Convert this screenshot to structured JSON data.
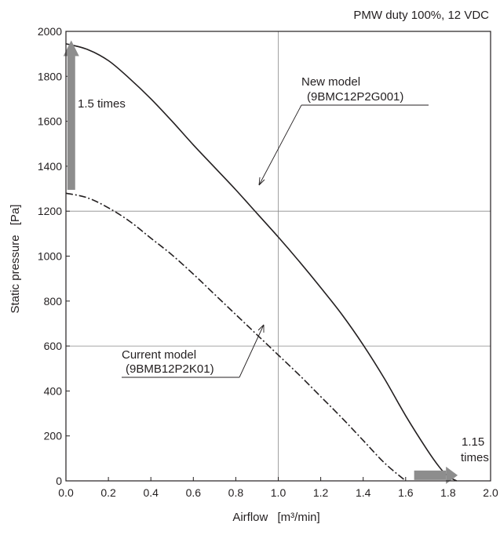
{
  "chart_data": {
    "type": "line",
    "title": "PMW duty 100%, 12 VDC",
    "xlabel": "Airflow",
    "xunit": "[m³/min]",
    "ylabel": "Static pressure",
    "yunit": "[Pa]",
    "xlim": [
      0.0,
      2.0
    ],
    "ylim": [
      0,
      2000
    ],
    "xticks": [
      "0.0",
      "0.2",
      "0.4",
      "0.6",
      "0.8",
      "1.0",
      "1.2",
      "1.4",
      "1.6",
      "1.8",
      "2.0"
    ],
    "yticks": [
      "0",
      "200",
      "400",
      "600",
      "800",
      "1000",
      "1200",
      "1400",
      "1600",
      "1800",
      "2000"
    ],
    "grid": true,
    "series": [
      {
        "name": "New model",
        "name2": "(9BMC12P2G001)",
        "style": "solid",
        "color": "#231f20",
        "x": [
          0.0,
          0.1,
          0.2,
          0.3,
          0.4,
          0.5,
          0.6,
          0.7,
          0.8,
          0.9,
          1.0,
          1.1,
          1.2,
          1.3,
          1.4,
          1.5,
          1.6,
          1.7,
          1.76,
          1.8,
          1.84
        ],
        "y": [
          1945,
          1920,
          1870,
          1790,
          1700,
          1600,
          1495,
          1395,
          1295,
          1190,
          1085,
          975,
          860,
          740,
          605,
          455,
          290,
          140,
          60,
          20,
          0
        ]
      },
      {
        "name": "Current model",
        "name2": "(9BMB12P2K01)",
        "style": "dashdot",
        "color": "#231f20",
        "x": [
          0.0,
          0.1,
          0.2,
          0.3,
          0.4,
          0.5,
          0.6,
          0.7,
          0.8,
          0.9,
          1.0,
          1.1,
          1.2,
          1.3,
          1.4,
          1.5,
          1.6
        ],
        "y": [
          1280,
          1260,
          1215,
          1155,
          1080,
          1005,
          920,
          830,
          740,
          650,
          560,
          470,
          375,
          280,
          180,
          80,
          0
        ]
      }
    ],
    "annotations": [
      {
        "text": "1.5 times"
      },
      {
        "text1": "1.15",
        "text2": "times"
      }
    ],
    "arrow_color": "#8d8d8d"
  }
}
